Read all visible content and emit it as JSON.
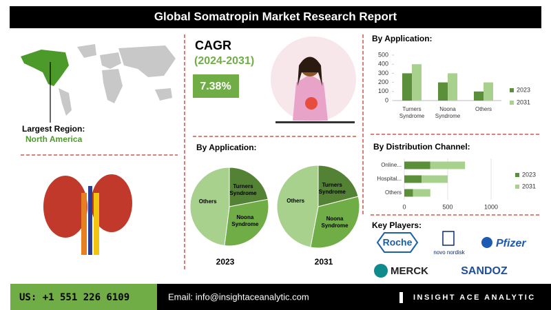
{
  "header": {
    "title": "Global Somatropin Market Research Report"
  },
  "region": {
    "label": "Largest Region:",
    "value": "North America"
  },
  "cagr": {
    "title": "CAGR",
    "period": "(2024-2031)",
    "value": "7.38%"
  },
  "pies": {
    "title": "By Application:",
    "charts": [
      {
        "type": "pie",
        "label": "2023",
        "categories": [
          "Turners Syndrome",
          "Noona Syndrome",
          "Others"
        ],
        "values": [
          22,
          30,
          48
        ],
        "colors": [
          "#548235",
          "#70ad47",
          "#a9d18e"
        ]
      },
      {
        "type": "pie",
        "label": "2031",
        "categories": [
          "Turners Syndrome",
          "Noona Syndrome",
          "Others"
        ],
        "values": [
          21,
          32,
          47
        ],
        "colors": [
          "#548235",
          "#70ad47",
          "#a9d18e"
        ]
      }
    ]
  },
  "application_chart": {
    "type": "bar",
    "title": "By Application:",
    "categories": [
      "Turners Syndrome",
      "Noona Syndrome",
      "Others"
    ],
    "series": [
      {
        "name": "2023",
        "color": "#5b8f3a",
        "values": [
          300,
          200,
          100
        ]
      },
      {
        "name": "2031",
        "color": "#a9d18e",
        "values": [
          400,
          300,
          200
        ]
      }
    ],
    "ylim": [
      0,
      500
    ],
    "yticks": [
      0,
      100,
      200,
      300,
      400,
      500
    ]
  },
  "distribution_chart": {
    "type": "hbar_stacked",
    "title": "By Distribution Channel:",
    "categories": [
      "Online...",
      "Hospital...",
      "Others"
    ],
    "series": [
      {
        "name": "2023",
        "color": "#5b8f3a",
        "values": [
          300,
          200,
          100
        ]
      },
      {
        "name": "2031",
        "color": "#a9d18e",
        "values": [
          400,
          300,
          200
        ]
      }
    ],
    "xlim": [
      0,
      1000
    ],
    "xticks": [
      0,
      500,
      1000
    ],
    "grid": true
  },
  "key_players": {
    "title": "Key Players:",
    "logos": [
      "Roche",
      "novo nordisk",
      "Pfizer",
      "MERCK",
      "SANDOZ"
    ]
  },
  "footer": {
    "phone": "US: +1 551 226 6109",
    "email": "Email: info@insightaceanalytic.com",
    "brand": "INSIGHT ACE ANALYTIC"
  }
}
